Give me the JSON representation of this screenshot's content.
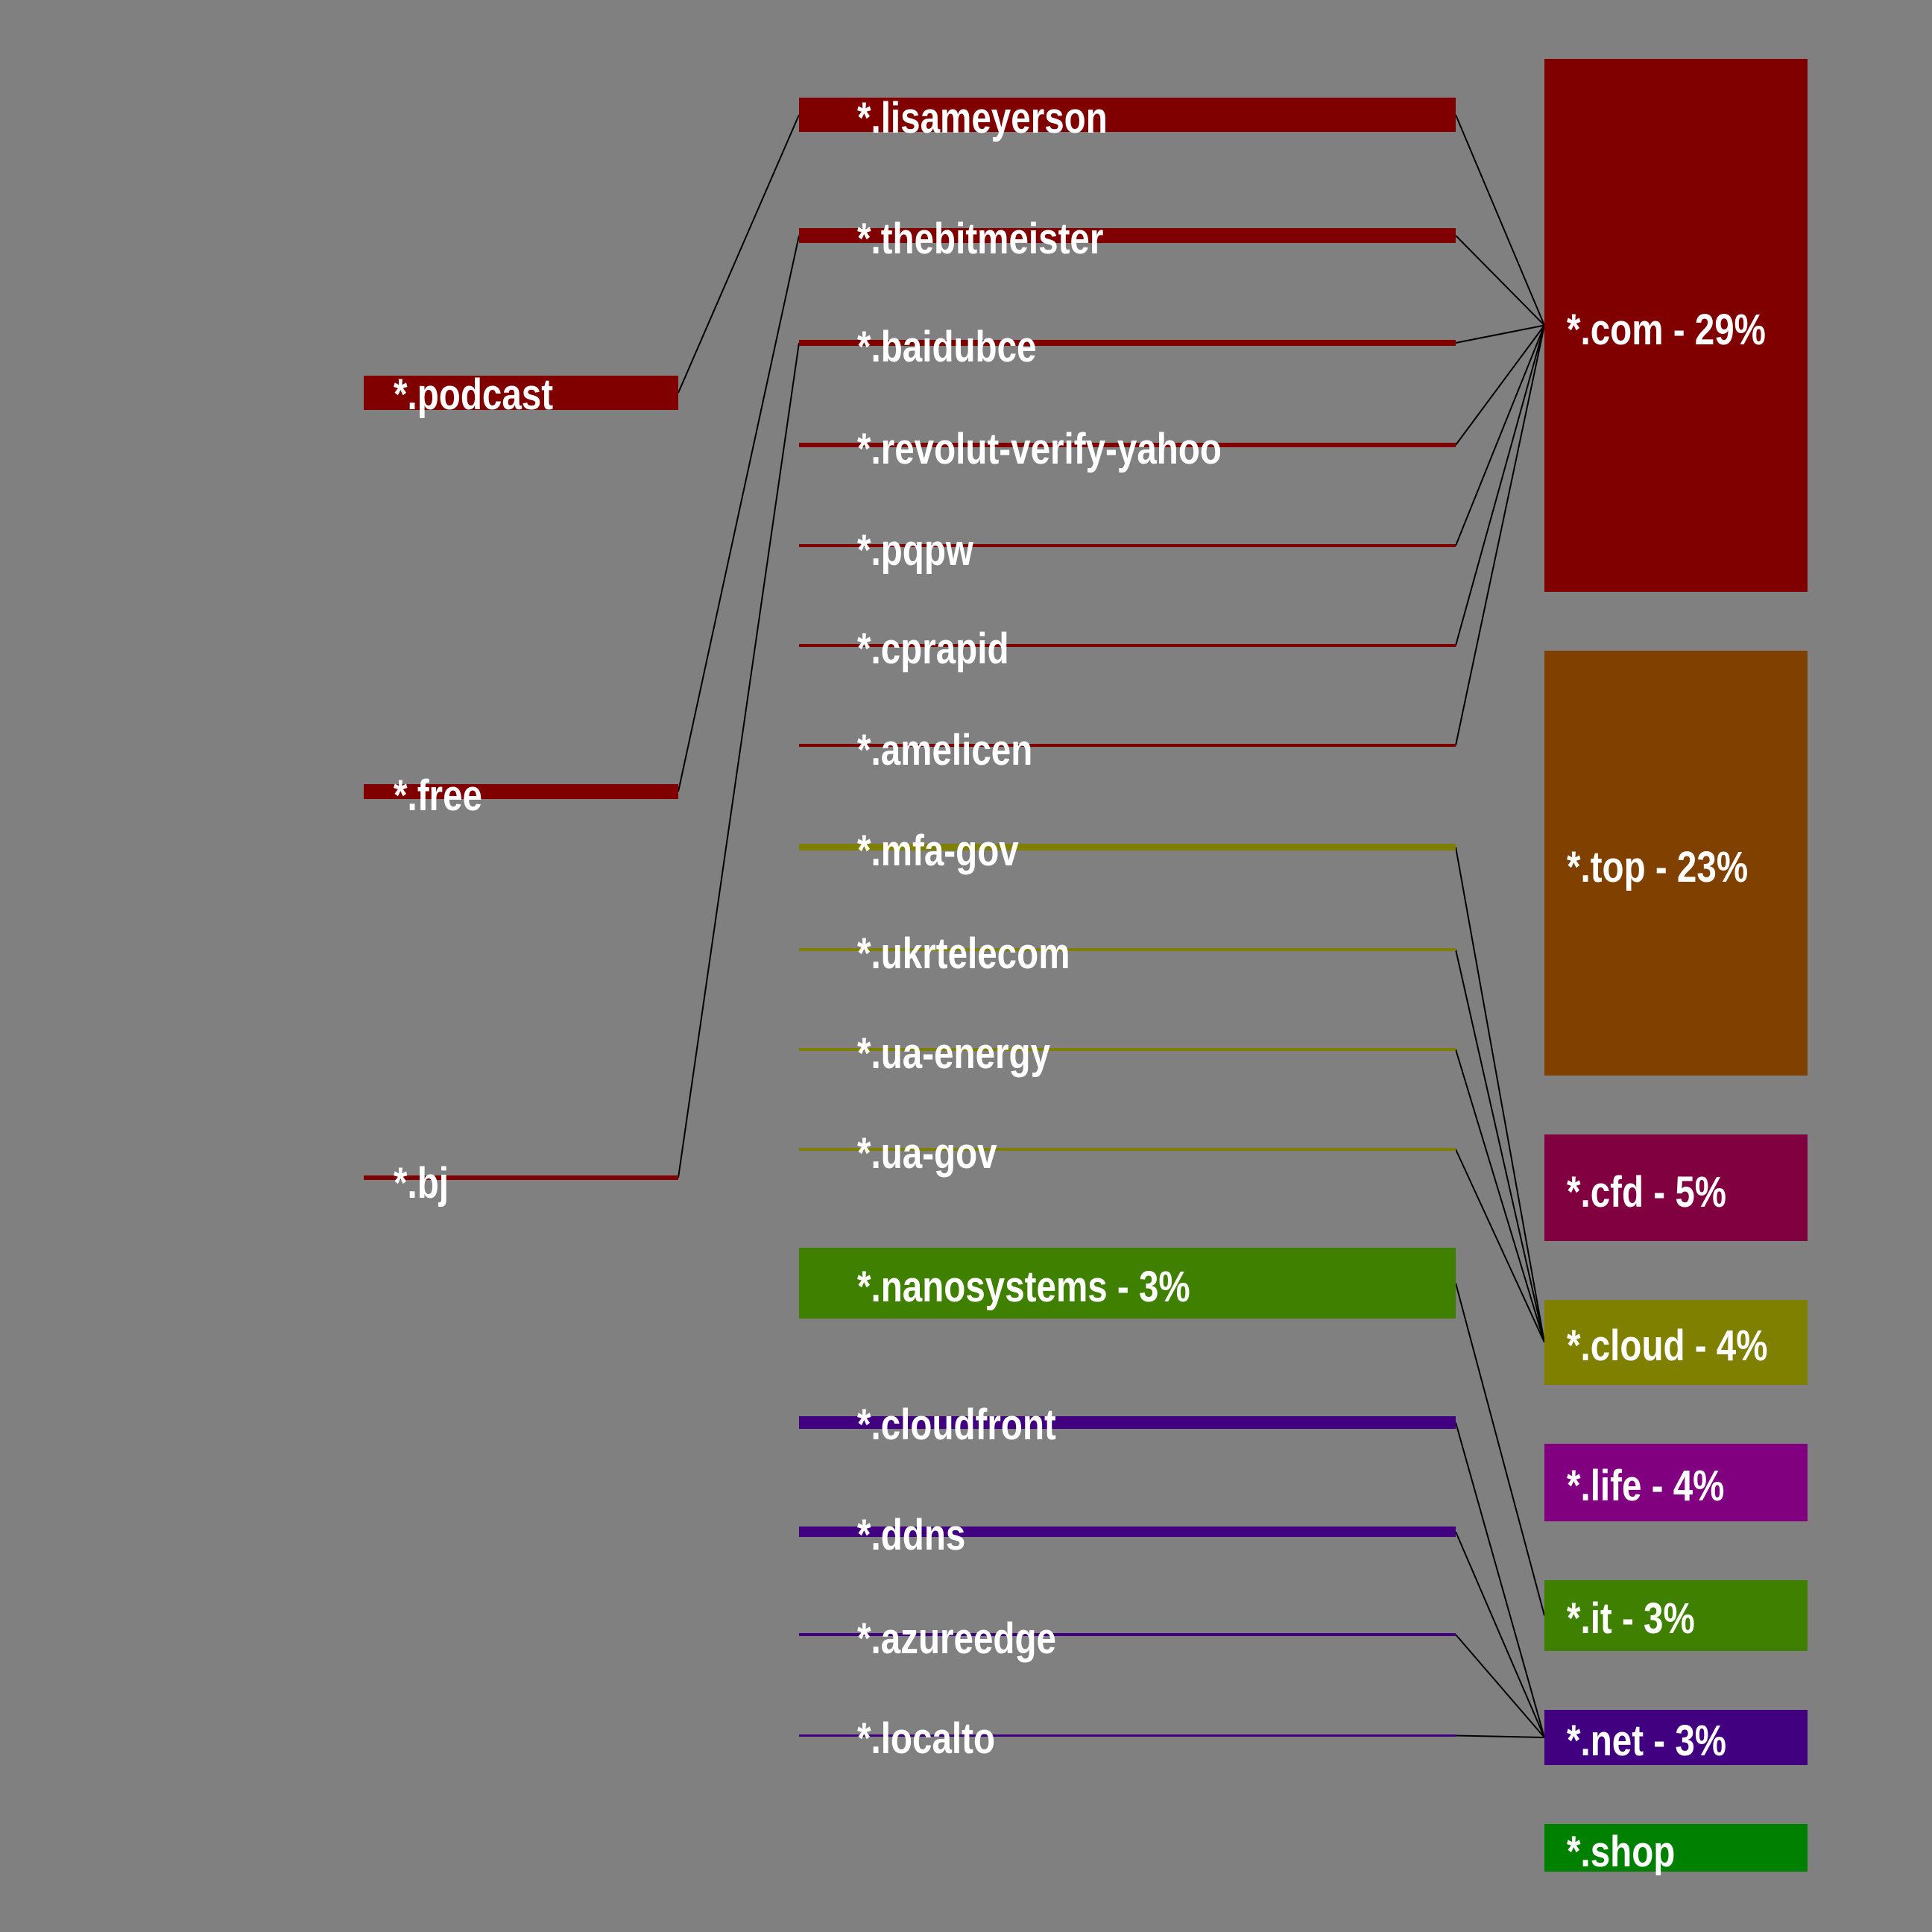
{
  "nodes": {
    "podcast": {
      "label": "*.podcast",
      "color": "#800000"
    },
    "free": {
      "label": "*.free",
      "color": "#800000"
    },
    "bj": {
      "label": "*.bj",
      "color": "#800000"
    },
    "lisameyerson": {
      "label": "*.lisameyerson",
      "color": "#800000"
    },
    "thebitmeister": {
      "label": "*.thebitmeister",
      "color": "#800000"
    },
    "baidubce": {
      "label": "*.baidubce",
      "color": "#800000"
    },
    "revolut": {
      "label": "*.revolut-verify-yahoo",
      "color": "#800000"
    },
    "pqpw": {
      "label": "*.pqpw",
      "color": "#800000"
    },
    "cprapid": {
      "label": "*.cprapid",
      "color": "#800000"
    },
    "amelicen": {
      "label": "*.amelicen",
      "color": "#800000"
    },
    "mfagov": {
      "label": "*.mfa-gov",
      "color": "#808000"
    },
    "ukrtelecom": {
      "label": "*.ukrtelecom",
      "color": "#808000"
    },
    "uaenergy": {
      "label": "*.ua-energy",
      "color": "#808000"
    },
    "uagov": {
      "label": "*.ua-gov",
      "color": "#808000"
    },
    "nanosystems": {
      "label": "*.nanosystems - 3%",
      "color": "#408000"
    },
    "cloudfront": {
      "label": "*.cloudfront",
      "color": "#400080"
    },
    "ddns": {
      "label": "*.ddns",
      "color": "#400080"
    },
    "azureedge": {
      "label": "*.azureedge",
      "color": "#400080"
    },
    "localto": {
      "label": "*.localto",
      "color": "#400080"
    },
    "com": {
      "label": "*.com - 29%",
      "color": "#800000"
    },
    "top": {
      "label": "*.top - 23%",
      "color": "#804000"
    },
    "cfd": {
      "label": "*.cfd - 5%",
      "color": "#800040"
    },
    "cloud": {
      "label": "*.cloud - 4%",
      "color": "#808000"
    },
    "life": {
      "label": "*.life - 4%",
      "color": "#800080"
    },
    "it": {
      "label": "*.it - 3%",
      "color": "#408000"
    },
    "net": {
      "label": "*.net - 3%",
      "color": "#400080"
    },
    "shop": {
      "label": "*.shop",
      "color": "#008000"
    }
  },
  "links": [
    [
      "podcast",
      "lisameyerson"
    ],
    [
      "free",
      "thebitmeister"
    ],
    [
      "bj",
      "baidubce"
    ],
    [
      "lisameyerson",
      "com"
    ],
    [
      "thebitmeister",
      "com"
    ],
    [
      "baidubce",
      "com"
    ],
    [
      "revolut",
      "com"
    ],
    [
      "pqpw",
      "com"
    ],
    [
      "cprapid",
      "com"
    ],
    [
      "amelicen",
      "com"
    ],
    [
      "mfagov",
      "cloud"
    ],
    [
      "ukrtelecom",
      "cloud"
    ],
    [
      "uaenergy",
      "cloud"
    ],
    [
      "uagov",
      "cloud"
    ],
    [
      "nanosystems",
      "it"
    ],
    [
      "cloudfront",
      "net"
    ],
    [
      "ddns",
      "net"
    ],
    [
      "azureedge",
      "net"
    ],
    [
      "localto",
      "net"
    ]
  ],
  "link_color": "#000000"
}
